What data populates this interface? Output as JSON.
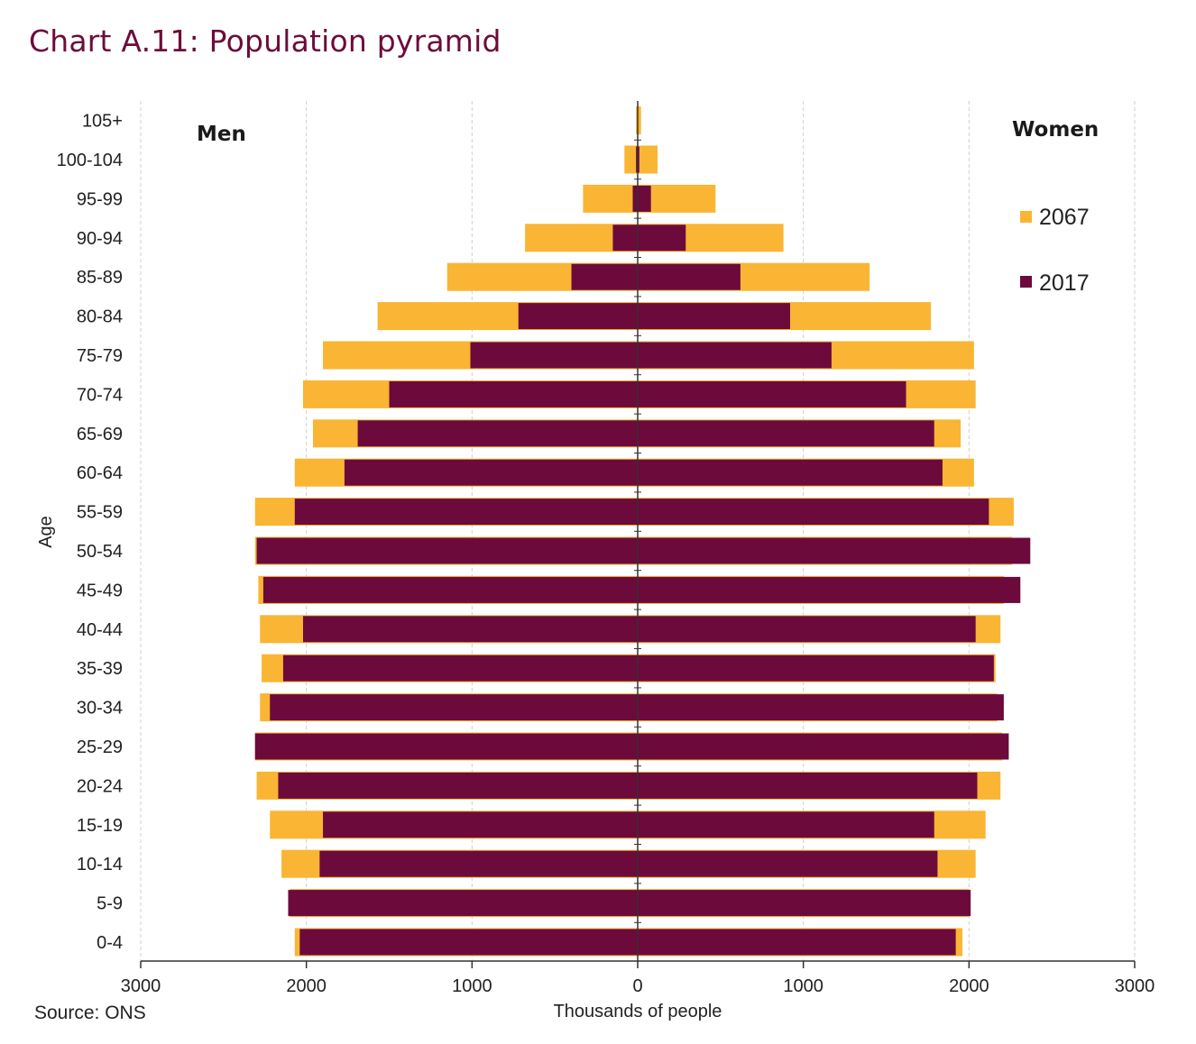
{
  "chart_data": {
    "type": "bar",
    "orientation": "horizontal-pyramid",
    "title": "Chart A.11: Population pyramid",
    "source": "Source: ONS",
    "xlabel": "Thousands of people",
    "ylabel": "Age",
    "xlim": [
      -3000,
      3000
    ],
    "x_ticks": [
      -3000,
      -2000,
      -1000,
      0,
      1000,
      2000,
      3000
    ],
    "x_tick_labels": [
      "3000",
      "2000",
      "1000",
      "0",
      "1000",
      "2000",
      "3000"
    ],
    "grid": "vertical-dashed",
    "left_label": "Men",
    "right_label": "Women",
    "legend_position": "top-right",
    "categories": [
      "0-4",
      "5-9",
      "10-14",
      "15-19",
      "20-24",
      "25-29",
      "30-34",
      "35-39",
      "40-44",
      "45-49",
      "50-54",
      "55-59",
      "60-64",
      "65-69",
      "70-74",
      "75-79",
      "80-84",
      "85-89",
      "90-94",
      "95-99",
      "100-104",
      "105+"
    ],
    "series": [
      {
        "name": "2067",
        "color": "#f9b533",
        "men": [
          2070,
          2100,
          2150,
          2220,
          2300,
          2310,
          2280,
          2270,
          2280,
          2290,
          2310,
          2310,
          2070,
          1960,
          2020,
          1900,
          1570,
          1150,
          680,
          330,
          80,
          10
        ],
        "women": [
          1960,
          2000,
          2040,
          2100,
          2190,
          2200,
          2170,
          2160,
          2190,
          2210,
          2260,
          2270,
          2030,
          1950,
          2040,
          2030,
          1770,
          1400,
          880,
          470,
          120,
          20
        ]
      },
      {
        "name": "2017",
        "color": "#6d0a3c",
        "men": [
          2040,
          2110,
          1920,
          1900,
          2170,
          2310,
          2220,
          2140,
          2020,
          2260,
          2300,
          2070,
          1770,
          1690,
          1500,
          1010,
          720,
          400,
          150,
          30,
          10,
          2
        ],
        "women": [
          1920,
          2010,
          1810,
          1790,
          2050,
          2240,
          2210,
          2150,
          2040,
          2310,
          2370,
          2120,
          1840,
          1790,
          1620,
          1170,
          920,
          620,
          290,
          80,
          10,
          2
        ]
      }
    ]
  }
}
